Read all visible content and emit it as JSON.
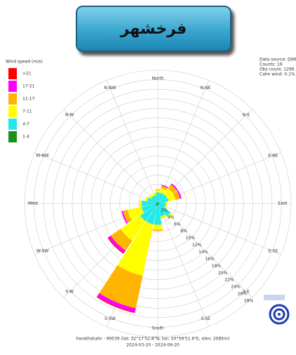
{
  "header": {
    "title": "فرخشهر"
  },
  "chart_data": {
    "type": "windrose",
    "legend_title": "Wind speed (m/s)",
    "categories": [
      "North",
      "N-NE",
      "N-E",
      "E-NE",
      "East",
      "E-SE",
      "S-E",
      "S-SE",
      "South",
      "S-SW",
      "S-W",
      "W-SW",
      "West",
      "W-NW",
      "N-W",
      "N-NW"
    ],
    "series": [
      {
        "name": "1-4",
        "color": "#1a8f1a",
        "values": [
          0.3,
          0.3,
          0.3,
          0.3,
          0.2,
          0.2,
          0.3,
          0.3,
          0.5,
          0.5,
          0.5,
          0.5,
          0.4,
          0.3,
          0.3,
          0.3
        ]
      },
      {
        "name": "4-7",
        "color": "#22e8e8",
        "values": [
          2,
          2,
          2,
          2,
          1.5,
          1.5,
          3,
          2.5,
          4,
          4,
          4,
          3,
          3,
          2,
          1.5,
          1.5
        ]
      },
      {
        "name": "7-11",
        "color": "#ffff00",
        "values": [
          0.5,
          1,
          1.5,
          1.5,
          0.3,
          0.3,
          0.5,
          0.5,
          1,
          11,
          5,
          3,
          0.5,
          0.5,
          0.5,
          0.5
        ]
      },
      {
        "name": "11-17",
        "color": "#ffb400",
        "values": [
          0.2,
          0.5,
          1,
          1,
          0,
          0,
          0,
          0,
          0.3,
          7,
          2.5,
          1,
          0,
          0,
          0,
          0
        ]
      },
      {
        "name": "17-21",
        "color": "#ff00ff",
        "values": [
          0,
          0.2,
          0.3,
          0.3,
          0,
          0,
          0,
          0,
          0,
          0.8,
          0.6,
          0.3,
          0,
          0,
          0,
          0
        ]
      },
      {
        "name": ">21",
        "color": "#ff0000",
        "values": [
          0,
          0,
          0,
          0,
          0,
          0,
          0,
          0,
          0,
          0.2,
          0.2,
          0,
          0,
          0,
          0,
          0
        ]
      }
    ],
    "rlim": [
      0,
      28
    ],
    "rticks": [
      {
        "value": 2,
        "label": "2%"
      },
      {
        "value": 4,
        "label": "4%"
      },
      {
        "value": 6,
        "label": "6%"
      },
      {
        "value": 8,
        "label": "8%"
      },
      {
        "value": 10,
        "label": "10%"
      },
      {
        "value": 12,
        "label": "12%"
      },
      {
        "value": 14,
        "label": "14%"
      },
      {
        "value": 16,
        "label": "16%"
      },
      {
        "value": 18,
        "label": "18%"
      },
      {
        "value": 20,
        "label": "20%"
      },
      {
        "value": 22,
        "label": "22%"
      },
      {
        "value": 24,
        "label": "24%"
      },
      {
        "value": 26,
        "label": "26%"
      },
      {
        "value": 28,
        "label": "28%"
      }
    ],
    "info": [
      "Data source: DWD",
      "Counts: 16",
      "Obs count: 1296",
      "Calm wind: 0.1%"
    ],
    "caption": [
      "Farokhshahr - 99539 (lat: 32°17'52.8\"N, lon: 50°59'51.6\"E, elev: 2085m)",
      "2024-03-20 - 2024-06-20"
    ]
  }
}
